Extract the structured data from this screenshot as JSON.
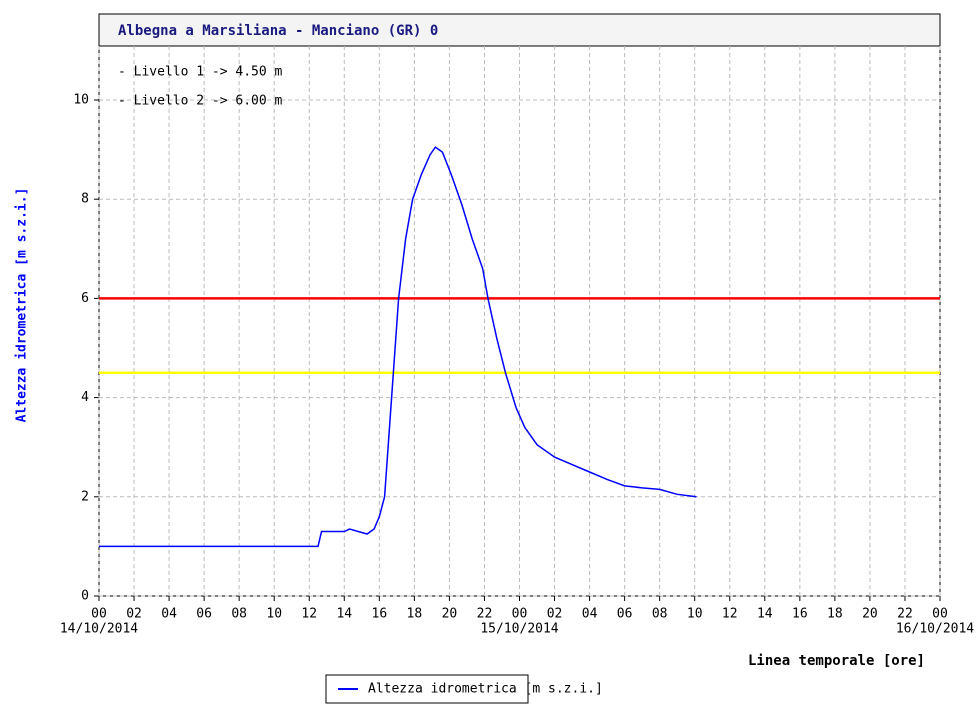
{
  "chart_data": {
    "type": "line",
    "title": "Albegna a Marsiliana - Manciano (GR) 0",
    "ylabel": "Altezza idrometrica [m s.z.i.]",
    "xlabel": "Linea temporale [ore]",
    "xlim": [
      0,
      48
    ],
    "ylim": [
      0,
      11
    ],
    "yticks": [
      0,
      2,
      4,
      6,
      8,
      10
    ],
    "xticks": [
      {
        "value": 0,
        "label": "00"
      },
      {
        "value": 2,
        "label": "02"
      },
      {
        "value": 4,
        "label": "04"
      },
      {
        "value": 6,
        "label": "06"
      },
      {
        "value": 8,
        "label": "08"
      },
      {
        "value": 10,
        "label": "10"
      },
      {
        "value": 12,
        "label": "12"
      },
      {
        "value": 14,
        "label": "14"
      },
      {
        "value": 16,
        "label": "16"
      },
      {
        "value": 18,
        "label": "18"
      },
      {
        "value": 20,
        "label": "20"
      },
      {
        "value": 22,
        "label": "22"
      },
      {
        "value": 24,
        "label": "00"
      },
      {
        "value": 26,
        "label": "02"
      },
      {
        "value": 28,
        "label": "04"
      },
      {
        "value": 30,
        "label": "06"
      },
      {
        "value": 32,
        "label": "08"
      },
      {
        "value": 34,
        "label": "10"
      },
      {
        "value": 36,
        "label": "12"
      },
      {
        "value": 38,
        "label": "14"
      },
      {
        "value": 40,
        "label": "16"
      },
      {
        "value": 42,
        "label": "18"
      },
      {
        "value": 44,
        "label": "20"
      },
      {
        "value": 46,
        "label": "22"
      },
      {
        "value": 48,
        "label": "00"
      }
    ],
    "date_labels": [
      {
        "value": 0,
        "label": "14/10/2014"
      },
      {
        "value": 24,
        "label": "15/10/2014"
      },
      {
        "value": 48,
        "label": "16/10/2014"
      }
    ],
    "grid": true,
    "hlines": [
      {
        "label": "- Livello 1 -> 4.50 m",
        "value": 4.5,
        "color": "#ffff00"
      },
      {
        "label": "- Livello 2 -> 6.00 m",
        "value": 6.0,
        "color": "#ff0000"
      }
    ],
    "series": [
      {
        "name": "Altezza idrometrica [m s.z.i.]",
        "color": "#0000ff",
        "x": [
          0,
          12.5,
          12.7,
          14.0,
          14.3,
          15.3,
          15.7,
          16.0,
          16.3,
          16.5,
          16.8,
          17.1,
          17.5,
          17.9,
          18.4,
          18.9,
          19.2,
          19.6,
          20.1,
          20.7,
          21.3,
          21.9,
          22.2,
          22.7,
          23.2,
          23.8,
          24.3,
          25.0,
          26.0,
          27.0,
          28.0,
          29.0,
          30.0,
          31.0,
          32.0,
          33.0,
          34.1
        ],
        "values": [
          1.0,
          1.0,
          1.3,
          1.3,
          1.35,
          1.25,
          1.35,
          1.6,
          2.0,
          3.0,
          4.5,
          6.0,
          7.2,
          8.0,
          8.5,
          8.9,
          9.05,
          8.95,
          8.5,
          7.9,
          7.2,
          6.6,
          6.0,
          5.2,
          4.5,
          3.8,
          3.4,
          3.05,
          2.8,
          2.65,
          2.5,
          2.35,
          2.22,
          2.18,
          2.15,
          2.05,
          2.0
        ]
      }
    ]
  }
}
